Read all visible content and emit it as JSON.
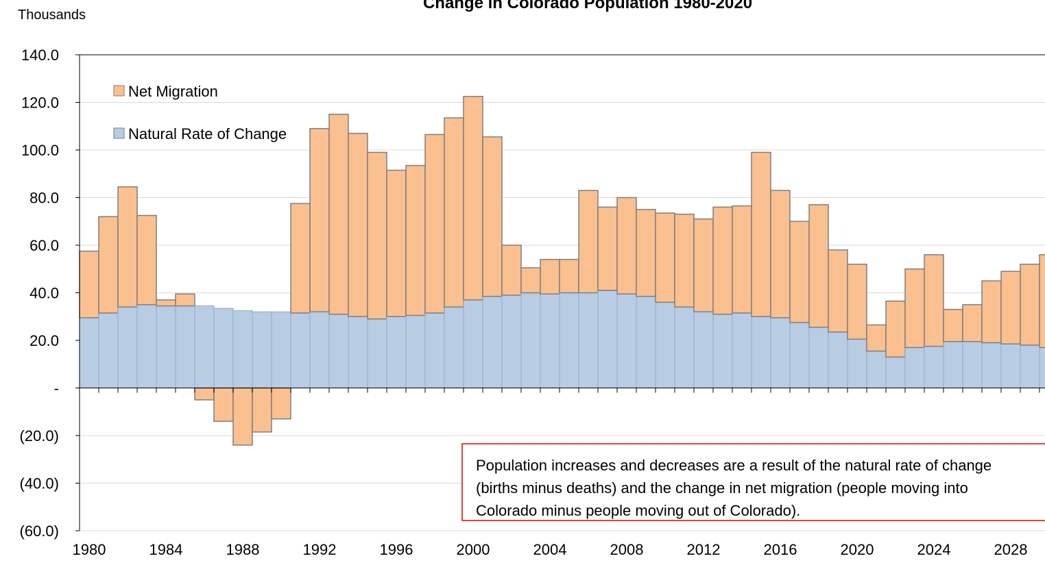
{
  "chart_data": {
    "type": "stacked_bar",
    "title": "Change in Colorado Population 1980-2020",
    "y_label": "Thousands",
    "categories": [
      "1980",
      null,
      null,
      null,
      "1984",
      null,
      null,
      null,
      "1988",
      null,
      null,
      null,
      "1992",
      null,
      null,
      null,
      "1996",
      null,
      null,
      null,
      "2000",
      null,
      null,
      null,
      "2004",
      null,
      null,
      null,
      "2008",
      null,
      null,
      null,
      "2012",
      null,
      null,
      null,
      "2016",
      null,
      null,
      null,
      "2020",
      null,
      null,
      null,
      "2024",
      null,
      null,
      null,
      "2028",
      null,
      null
    ],
    "series": [
      {
        "name": "Natural Rate of Change",
        "color": "#b8cce4",
        "values": [
          29.5,
          31.5,
          34,
          35,
          34.5,
          34.5,
          34.5,
          33.5,
          32.5,
          32,
          32,
          31.5,
          32,
          31,
          30,
          29,
          30,
          30.5,
          31.5,
          34,
          37,
          38.5,
          39,
          40,
          39.5,
          40,
          40,
          41,
          39.5,
          38.5,
          36,
          34,
          32,
          31,
          31.5,
          30,
          29.5,
          27.5,
          25.5,
          23.5,
          20.5,
          15.5,
          13,
          17,
          17.5,
          19.5,
          19.5,
          19,
          18.5,
          18,
          17
        ]
      },
      {
        "name": "Net Migration",
        "color": "#fac090",
        "values": [
          28,
          40.5,
          50.5,
          37.5,
          2.5,
          5,
          -5,
          -14,
          -24,
          -18.5,
          -13,
          46,
          77,
          84,
          77,
          70,
          61.5,
          63,
          75,
          79.5,
          85.5,
          67,
          21,
          10.5,
          14.5,
          14,
          43,
          35,
          40.5,
          36.5,
          37.5,
          39,
          39,
          45,
          45,
          69,
          53.5,
          42.5,
          51.5,
          34.5,
          31.5,
          11,
          23.5,
          33,
          38.5,
          13.5,
          15.5,
          26,
          30.5,
          34,
          39
        ]
      }
    ],
    "ylim": [
      -60,
      140
    ],
    "yticks": [
      {
        "value": -60,
        "label": "(60.0)"
      },
      {
        "value": -40,
        "label": "(40.0)"
      },
      {
        "value": -20,
        "label": "(20.0)"
      },
      {
        "value": 0,
        "label": "-"
      },
      {
        "value": 20,
        "label": "20.0"
      },
      {
        "value": 40,
        "label": "40.0"
      },
      {
        "value": 60,
        "label": "60.0"
      },
      {
        "value": 80,
        "label": "80.0"
      },
      {
        "value": 100,
        "label": "100.0"
      },
      {
        "value": 120,
        "label": "120.0"
      },
      {
        "value": 140,
        "label": "140.0"
      }
    ],
    "grid": true,
    "legend": "upper left",
    "annotation": [
      "Population increases and decreases are a result of the natural rate of change",
      "(births minus deaths) and the change in net migration (people moving into",
      "Colorado minus people moving out of Colorado)."
    ]
  }
}
